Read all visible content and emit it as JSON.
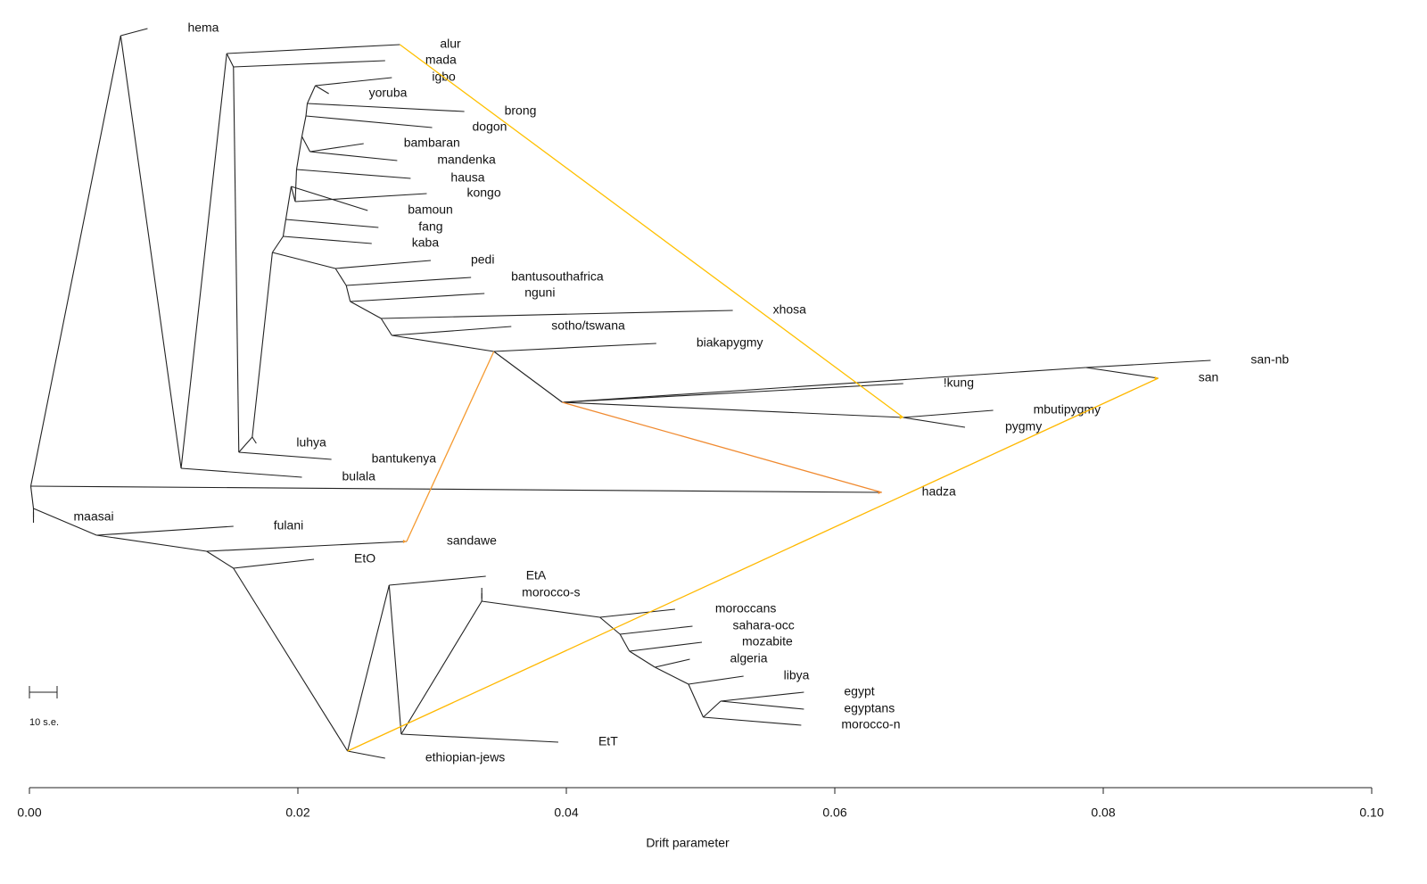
{
  "chart_data": {
    "type": "tree",
    "x_label": "Drift parameter",
    "scale_label": "10 s.e.",
    "xlim": [
      0,
      0.1
    ],
    "xticks": [
      {
        "value": 0,
        "label": "0.00"
      },
      {
        "value": 0.02,
        "label": "0.02"
      },
      {
        "value": 0.04,
        "label": "0.04"
      },
      {
        "value": 0.06,
        "label": "0.06"
      },
      {
        "value": 0.08,
        "label": "0.08"
      },
      {
        "value": 0.1,
        "label": "0.10"
      }
    ],
    "nodes": [
      {
        "x": 0.0001
      },
      {
        "x": 0.0068,
        "parent": 0
      },
      {
        "x": 0.0088,
        "parent": 1,
        "label": "hema"
      },
      {
        "x": 0.0113,
        "parent": 1
      },
      {
        "x": 0.0203,
        "parent": 3,
        "label": "bulala"
      },
      {
        "x": 0.0147,
        "parent": 3
      },
      {
        "x": 0.0276,
        "parent": 5,
        "label": "alur"
      },
      {
        "x": 0.0152,
        "parent": 5
      },
      {
        "x": 0.0265,
        "parent": 7,
        "label": "mada"
      },
      {
        "x": 0.0156,
        "parent": 7
      },
      {
        "x": 0.0225,
        "parent": 9,
        "label": "bantukenya"
      },
      {
        "x": 0.0166,
        "parent": 9
      },
      {
        "x": 0.0169,
        "parent": 11,
        "label": "luhya"
      },
      {
        "x": 0.0181,
        "parent": 11
      },
      {
        "x": 0.0189,
        "parent": 13
      },
      {
        "x": 0.0255,
        "parent": 14,
        "label": "kaba"
      },
      {
        "x": 0.0191,
        "parent": 14
      },
      {
        "x": 0.026,
        "parent": 16,
        "label": "fang"
      },
      {
        "x": 0.0195,
        "parent": 16
      },
      {
        "x": 0.0252,
        "parent": 18,
        "label": "bamoun"
      },
      {
        "x": 0.0198,
        "parent": 18
      },
      {
        "x": 0.0296,
        "parent": 20,
        "label": "kongo"
      },
      {
        "x": 0.0199,
        "parent": 20
      },
      {
        "x": 0.0284,
        "parent": 22,
        "label": "hausa"
      },
      {
        "x": 0.0203,
        "parent": 22
      },
      {
        "x": 0.0209,
        "parent": 24
      },
      {
        "x": 0.0249,
        "parent": 25,
        "label": "bambaran"
      },
      {
        "x": 0.0274,
        "parent": 25,
        "label": "mandenka"
      },
      {
        "x": 0.0206,
        "parent": 24
      },
      {
        "x": 0.03,
        "parent": 28,
        "label": "dogon"
      },
      {
        "x": 0.0207,
        "parent": 28
      },
      {
        "x": 0.0324,
        "parent": 30,
        "label": "brong"
      },
      {
        "x": 0.0213,
        "parent": 30
      },
      {
        "x": 0.0223,
        "parent": 32,
        "label": "yoruba"
      },
      {
        "x": 0.027,
        "parent": 32,
        "label": "igbo"
      },
      {
        "x": 0.0228,
        "parent": 13
      },
      {
        "x": 0.0299,
        "parent": 35,
        "label": "pedi"
      },
      {
        "x": 0.0236,
        "parent": 35
      },
      {
        "x": 0.0329,
        "parent": 37,
        "label": "bantusouthafrica"
      },
      {
        "x": 0.0239,
        "parent": 37
      },
      {
        "x": 0.0339,
        "parent": 39,
        "label": "nguni"
      },
      {
        "x": 0.0262,
        "parent": 39
      },
      {
        "x": 0.0524,
        "parent": 41,
        "label": "xhosa"
      },
      {
        "x": 0.027,
        "parent": 41
      },
      {
        "x": 0.0359,
        "parent": 43,
        "label": "sotho/tswana"
      },
      {
        "x": 0.0346,
        "parent": 43
      },
      {
        "x": 0.0467,
        "parent": 45,
        "label": "biakapygmy"
      },
      {
        "x": 0.0397,
        "parent": 45
      },
      {
        "x": 0.0787,
        "parent": 47
      },
      {
        "x": 0.088,
        "parent": 48,
        "label": "san-nb"
      },
      {
        "x": 0.0841,
        "parent": 48,
        "label": "san"
      },
      {
        "x": 0.0651,
        "parent": 47
      },
      {
        "x": 0.0718,
        "parent": 51,
        "label": "mbutipygmy"
      },
      {
        "x": 0.0697,
        "parent": 51,
        "label": "pygmy"
      },
      {
        "x": 0.0651,
        "parent": 47,
        "label": "!kung"
      },
      {
        "x": 0.0635,
        "parent": 0,
        "label": "hadza"
      },
      {
        "x": 0.0003,
        "parent": 0
      },
      {
        "x": 0.0003,
        "parent": 56,
        "label": "maasai"
      },
      {
        "x": 0.005,
        "parent": 56
      },
      {
        "x": 0.0152,
        "parent": 58,
        "label": "fulani"
      },
      {
        "x": 0.0132,
        "parent": 58
      },
      {
        "x": 0.0281,
        "parent": 60,
        "label": "sandawe"
      },
      {
        "x": 0.0152,
        "parent": 60
      },
      {
        "x": 0.0212,
        "parent": 62,
        "label": "EtO"
      },
      {
        "x": 0.0237,
        "parent": 62
      },
      {
        "x": 0.0265,
        "parent": 64,
        "label": "ethiopian-jews"
      },
      {
        "x": 0.0268,
        "parent": 64
      },
      {
        "x": 0.034,
        "parent": 66,
        "label": "EtA"
      },
      {
        "x": 0.0277,
        "parent": 66
      },
      {
        "x": 0.0394,
        "parent": 68,
        "label": "EtT"
      },
      {
        "x": 0.0337,
        "parent": 68
      },
      {
        "x": 0.0337,
        "parent": 70,
        "label": "morocco-s"
      },
      {
        "x": 0.0425,
        "parent": 70
      },
      {
        "x": 0.0481,
        "parent": 72,
        "label": "moroccans"
      },
      {
        "x": 0.044,
        "parent": 72
      },
      {
        "x": 0.0494,
        "parent": 74,
        "label": "sahara-occ"
      },
      {
        "x": 0.0447,
        "parent": 74
      },
      {
        "x": 0.0501,
        "parent": 76,
        "label": "mozabite"
      },
      {
        "x": 0.0466,
        "parent": 76
      },
      {
        "x": 0.0492,
        "parent": 78,
        "label": "algeria"
      },
      {
        "x": 0.0491,
        "parent": 78
      },
      {
        "x": 0.0532,
        "parent": 80,
        "label": "libya"
      },
      {
        "x": 0.0502,
        "parent": 80
      },
      {
        "x": 0.0575,
        "parent": 82,
        "label": "morocco-n"
      },
      {
        "x": 0.0515,
        "parent": 82
      },
      {
        "x": 0.0577,
        "parent": 84,
        "label": "egypt"
      },
      {
        "x": 0.0577,
        "parent": 84,
        "label": "egyptans"
      }
    ],
    "migrations": [
      {
        "from": 6,
        "to": 51,
        "color": "#ffc000"
      },
      {
        "from": 45,
        "to": 61,
        "color": "#f59a30"
      },
      {
        "from": 47,
        "to": 55,
        "color": "#f08a30"
      },
      {
        "from": 64,
        "to": 50,
        "color": "#ffb800"
      }
    ]
  }
}
